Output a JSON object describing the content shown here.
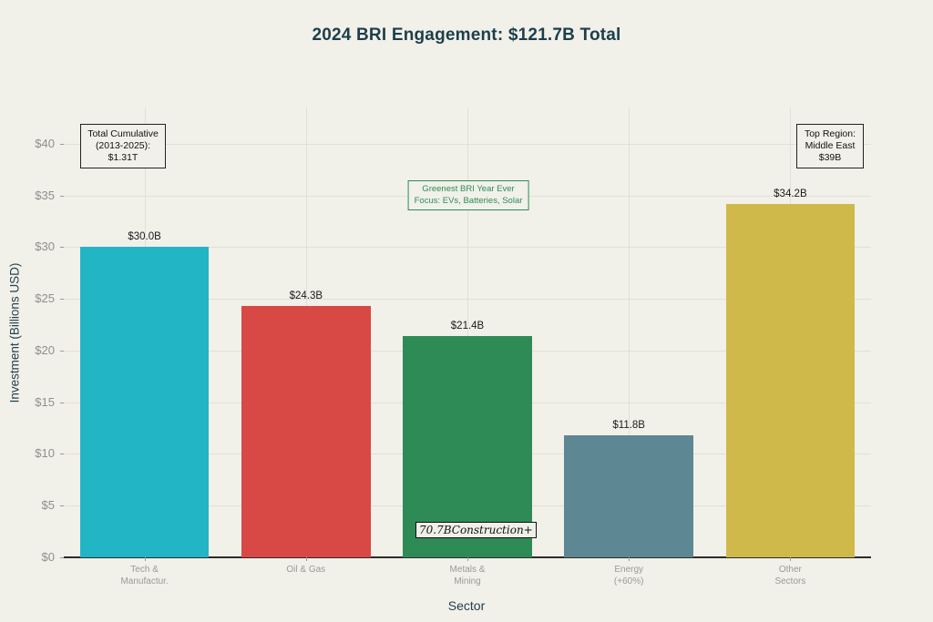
{
  "page": {
    "background": "#f1f0e9"
  },
  "chart_data": {
    "type": "bar",
    "title": "2024 BRI Engagement: $121.7B Total",
    "xlabel": "Sector",
    "ylabel": "Investment (Billions USD)",
    "categories": [
      [
        "Tech &",
        "Manufactur."
      ],
      [
        "Oil & Gas"
      ],
      [
        "Metals &",
        "Mining"
      ],
      [
        "Energy",
        "(+60%)"
      ],
      [
        "Other",
        "Sectors"
      ]
    ],
    "values": [
      30.0,
      24.3,
      21.4,
      11.8,
      34.2
    ],
    "bar_labels": [
      "$30.0B",
      "$24.3B",
      "$21.4B",
      "$11.8B",
      "$34.2B"
    ],
    "bar_colors": [
      "#22b5c6",
      "#d84844",
      "#2f8b55",
      "#5d8793",
      "#d0b94b"
    ],
    "yticks": [
      {
        "value": 0,
        "label": "$0"
      },
      {
        "value": 5,
        "label": "$5"
      },
      {
        "value": 10,
        "label": "$10"
      },
      {
        "value": 15,
        "label": "$15"
      },
      {
        "value": 20,
        "label": "$20"
      },
      {
        "value": 25,
        "label": "$25"
      },
      {
        "value": 30,
        "label": "$30"
      },
      {
        "value": 35,
        "label": "$35"
      },
      {
        "value": 40,
        "label": "$40"
      }
    ],
    "ylim": [
      0,
      43.5
    ],
    "grid": true,
    "legend": null,
    "annotations": {
      "total_cumulative": {
        "lines": [
          "Total Cumulative",
          "(2013-2025):",
          "$1.31T"
        ]
      },
      "top_region": {
        "lines": [
          "Top Region:",
          "Middle East",
          "$39B"
        ]
      },
      "greenest": {
        "lines": [
          "Greenest BRI Year Ever",
          "Focus: EVs, Batteries, Solar"
        ],
        "color": "#2e8b57"
      },
      "construction": {
        "text": "70.7BConstruction+"
      }
    },
    "colors": {
      "title": "#1d3e4a",
      "axis_label": "#24424e",
      "tick_label": "#8f8f8f",
      "value_label": "#1a1a1a",
      "grid": "#e2e0d6",
      "axis_line": "#2b2b2b",
      "background": "#f1f0e9"
    }
  }
}
